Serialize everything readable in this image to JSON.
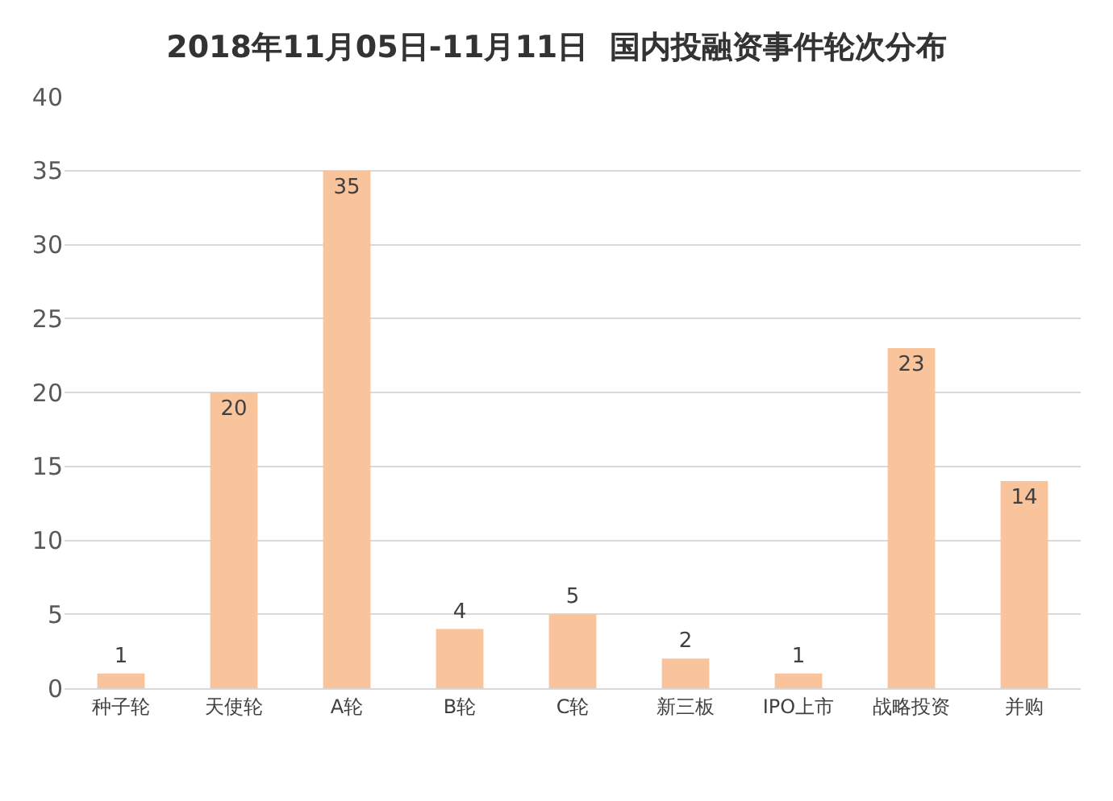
{
  "chart_data": {
    "type": "bar",
    "title": "2018年11月05日-11月11日  国内投融资事件轮次分布",
    "categories": [
      "种子轮",
      "天使轮",
      "A轮",
      "B轮",
      "C轮",
      "新三板",
      "IPO上市",
      "战略投资",
      "并购"
    ],
    "values": [
      1,
      20,
      35,
      4,
      5,
      2,
      1,
      23,
      14
    ],
    "color": "#f9c39c",
    "ylim": [
      0,
      40
    ],
    "yticks": [
      0,
      5,
      10,
      15,
      20,
      25,
      30,
      35,
      40
    ],
    "grid": "y",
    "data_labels": true
  }
}
